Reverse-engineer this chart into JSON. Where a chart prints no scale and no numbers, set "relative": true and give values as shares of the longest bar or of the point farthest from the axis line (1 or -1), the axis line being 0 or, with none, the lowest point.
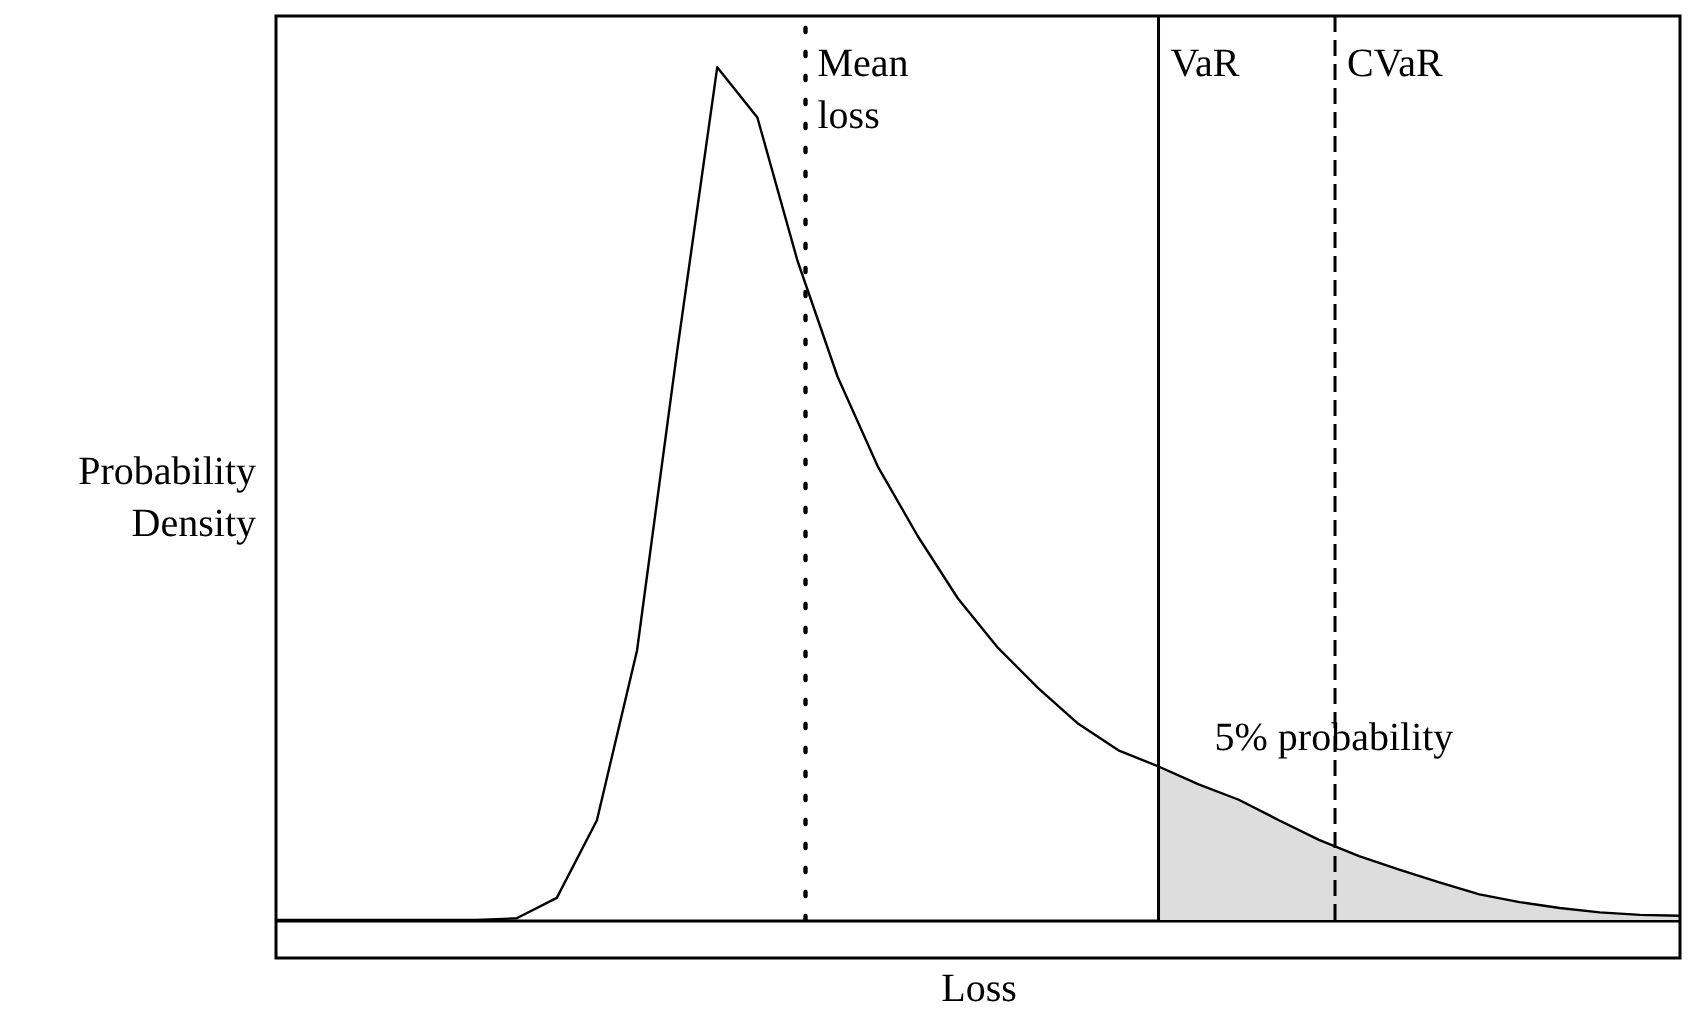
{
  "chart_data": {
    "type": "line",
    "relative": true,
    "xlabel": "Loss",
    "ylabel": "Probability Density",
    "categories": [
      null,
      null,
      null,
      null,
      null,
      null,
      null,
      null,
      null,
      null,
      null,
      null,
      null,
      null,
      null,
      null,
      null,
      null,
      null,
      null,
      null,
      null,
      null,
      null,
      null,
      null,
      null,
      null,
      null,
      null,
      null,
      null,
      null,
      null,
      null,
      null
    ],
    "tick_labels": false,
    "line_style": "solid",
    "series": [
      {
        "color": "#000000",
        "values": [
          0,
          0,
          0,
          0,
          0,
          0,
          0.002,
          0.026,
          0.117,
          0.316,
          0.667,
          1,
          0.941,
          0.773,
          0.637,
          0.532,
          0.45,
          0.377,
          0.319,
          0.272,
          0.23,
          0.199,
          0.18,
          0.159,
          0.141,
          0.117,
          0.094,
          0.075,
          0.059,
          0.044,
          0.03,
          0.021,
          0.014,
          0.009,
          0.006,
          0.005
        ]
      },
      {
        "type": "area",
        "name": "5% probability",
        "color": "#dddddd",
        "values": [
          null,
          null,
          null,
          null,
          null,
          null,
          null,
          null,
          null,
          null,
          null,
          null,
          null,
          null,
          null,
          null,
          null,
          null,
          null,
          null,
          null,
          null,
          0.18,
          0.159,
          0.141,
          0.117,
          0.094,
          0.075,
          0.059,
          0.044,
          0.03,
          0.021,
          0.014,
          0.009,
          0.006,
          0.005
        ]
      }
    ],
    "annotations": [
      "Mean loss",
      "VaR",
      "CVaR"
    ]
  }
}
